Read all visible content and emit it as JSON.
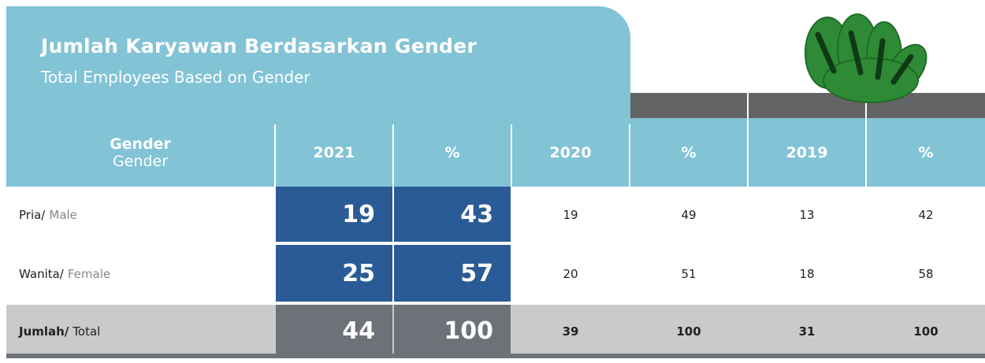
{
  "header": {
    "title": "Jumlah Karyawan Berdasarkan Gender",
    "subtitle": "Total Employees Based on Gender"
  },
  "table": {
    "columns": [
      {
        "label": "Gender",
        "sublabel": "Gender"
      },
      {
        "label": "2021"
      },
      {
        "label": "%"
      },
      {
        "label": "2020"
      },
      {
        "label": "%"
      },
      {
        "label": "2019"
      },
      {
        "label": "%"
      }
    ],
    "rows": [
      {
        "label": "Pria/",
        "sublabel": "Male",
        "values": [
          19,
          43,
          19,
          49,
          13,
          42
        ]
      },
      {
        "label": "Wanita/",
        "sublabel": "Female",
        "values": [
          25,
          57,
          20,
          51,
          18,
          58
        ]
      },
      {
        "label": "Jumlah/",
        "sublabel": "Total",
        "values": [
          44,
          100,
          39,
          100,
          31,
          100
        ]
      }
    ]
  }
}
